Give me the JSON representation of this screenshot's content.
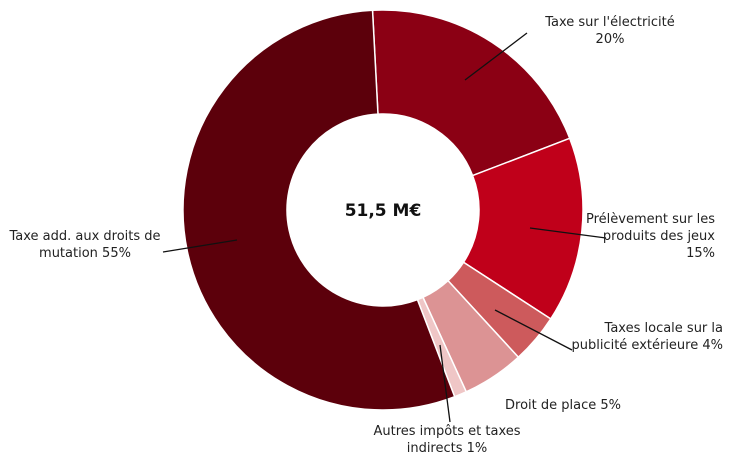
{
  "chart_data": {
    "type": "donut",
    "center_label": "51,5 M€",
    "categories": [
      "Taxe sur l'électricité",
      "Prélèvement sur les produits des jeux",
      "Taxes locale sur la publicité extérieure",
      "Droit de place",
      "Autres impôts et taxes indirects",
      "Taxe add. aux droits de mutation"
    ],
    "values": [
      20,
      15,
      4,
      5,
      1,
      55
    ],
    "value_labels": [
      "20%",
      "15%",
      "4%",
      "5%",
      "1%",
      "55%"
    ],
    "colors": [
      "#8b0014",
      "#c0001a",
      "#cd5a5c",
      "#dc9394",
      "#efc6c6",
      "#5c000b"
    ]
  }
}
